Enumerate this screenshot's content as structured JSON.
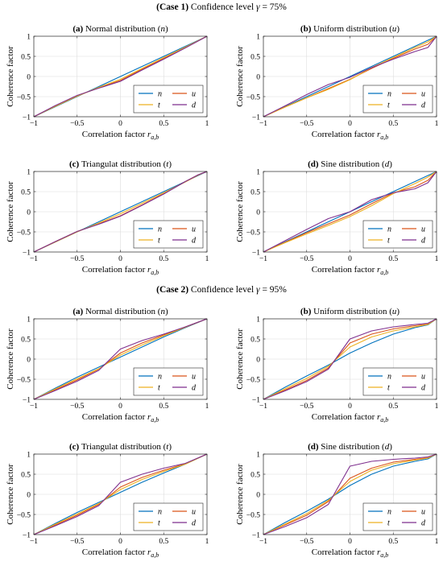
{
  "cases": [
    {
      "label": "(Case 1)",
      "text": "Confidence level ",
      "gamma_sym": "γ",
      "value": " = 75%"
    },
    {
      "label": "(Case 2)",
      "text": "Confidence level ",
      "gamma_sym": "γ",
      "value": " = 95%"
    }
  ],
  "colors": {
    "n": "#0072BD",
    "u": "#D95319",
    "t": "#EDB120",
    "d": "#7E2F8E"
  },
  "chart_data": [
    {
      "type": "line",
      "panel": "(a)",
      "title": "Normal distribution",
      "title_sym": "n",
      "xlabel": "Correlation factor",
      "xlabel_sym": "r",
      "xlabel_sub": "a,b",
      "ylabel": "Coherence factor",
      "xlim": [
        -1,
        1
      ],
      "ylim": [
        -1,
        1
      ],
      "xticks": [
        -1,
        -0.5,
        0,
        0.5,
        1
      ],
      "yticks": [
        -1,
        -0.5,
        0,
        0.5,
        1
      ],
      "grid": true,
      "legend": "bottom-right",
      "x": [
        -1,
        -0.75,
        -0.5,
        -0.25,
        0,
        0.25,
        0.5,
        0.75,
        1
      ],
      "series": [
        {
          "name": "n",
          "values": [
            -1,
            -0.75,
            -0.5,
            -0.25,
            0,
            0.25,
            0.5,
            0.75,
            1
          ]
        },
        {
          "name": "u",
          "values": [
            -1,
            -0.73,
            -0.48,
            -0.28,
            -0.1,
            0.18,
            0.45,
            0.72,
            1
          ]
        },
        {
          "name": "t",
          "values": [
            -1,
            -0.74,
            -0.49,
            -0.27,
            -0.07,
            0.2,
            0.47,
            0.73,
            1
          ]
        },
        {
          "name": "d",
          "values": [
            -1,
            -0.72,
            -0.47,
            -0.29,
            -0.12,
            0.16,
            0.43,
            0.71,
            1
          ]
        }
      ]
    },
    {
      "type": "line",
      "panel": "(b)",
      "title": "Uniform distribution",
      "title_sym": "u",
      "xlabel": "Correlation factor",
      "xlabel_sym": "r",
      "xlabel_sub": "a,b",
      "ylabel": "Coherence factor",
      "xlim": [
        -1,
        1
      ],
      "ylim": [
        -1,
        1
      ],
      "xticks": [
        -1,
        -0.5,
        0,
        0.5,
        1
      ],
      "yticks": [
        -1,
        -0.5,
        0,
        0.5,
        1
      ],
      "grid": true,
      "legend": "bottom-right",
      "x": [
        -1,
        -0.75,
        -0.5,
        -0.25,
        0,
        0.25,
        0.5,
        0.75,
        0.9,
        1
      ],
      "series": [
        {
          "name": "n",
          "values": [
            -1,
            -0.75,
            -0.5,
            -0.25,
            0,
            0.25,
            0.5,
            0.75,
            0.9,
            1
          ]
        },
        {
          "name": "u",
          "values": [
            -1,
            -0.76,
            -0.53,
            -0.3,
            -0.07,
            0.2,
            0.45,
            0.68,
            0.8,
            1
          ]
        },
        {
          "name": "t",
          "values": [
            -1,
            -0.76,
            -0.53,
            -0.32,
            -0.08,
            0.22,
            0.47,
            0.72,
            0.86,
            1
          ]
        },
        {
          "name": "d",
          "values": [
            -1,
            -0.73,
            -0.45,
            -0.2,
            -0.02,
            0.22,
            0.43,
            0.62,
            0.72,
            1
          ]
        }
      ]
    },
    {
      "type": "line",
      "panel": "(c)",
      "title": "Triangulat distribution",
      "title_sym": "t",
      "xlabel": "Correlation factor",
      "xlabel_sym": "r",
      "xlabel_sub": "a,b",
      "ylabel": "Coherence factor",
      "xlim": [
        -1,
        1
      ],
      "ylim": [
        -1,
        1
      ],
      "xticks": [
        -1,
        -0.5,
        0,
        0.5,
        1
      ],
      "yticks": [
        -1,
        -0.5,
        0,
        0.5,
        1
      ],
      "grid": true,
      "legend": "bottom-right",
      "x": [
        -1,
        -0.75,
        -0.5,
        -0.25,
        0,
        0.25,
        0.5,
        0.75,
        0.9,
        1
      ],
      "series": [
        {
          "name": "n",
          "values": [
            -1,
            -0.75,
            -0.5,
            -0.25,
            0,
            0.25,
            0.5,
            0.75,
            0.9,
            1
          ]
        },
        {
          "name": "u",
          "values": [
            -1,
            -0.74,
            -0.49,
            -0.3,
            -0.1,
            0.17,
            0.45,
            0.75,
            0.92,
            1
          ]
        },
        {
          "name": "t",
          "values": [
            -1,
            -0.75,
            -0.5,
            -0.28,
            -0.05,
            0.21,
            0.47,
            0.74,
            0.91,
            1
          ]
        },
        {
          "name": "d",
          "values": [
            -1,
            -0.74,
            -0.49,
            -0.31,
            -0.11,
            0.16,
            0.44,
            0.75,
            0.92,
            1
          ]
        }
      ]
    },
    {
      "type": "line",
      "panel": "(d)",
      "title": "Sine distribution",
      "title_sym": "d",
      "xlabel": "Correlation factor",
      "xlabel_sym": "r",
      "xlabel_sub": "a,b",
      "ylabel": "Coherence factor",
      "xlim": [
        -1,
        1
      ],
      "ylim": [
        -1,
        1
      ],
      "xticks": [
        -1,
        -0.5,
        0,
        0.5,
        1
      ],
      "yticks": [
        -1,
        -0.5,
        0,
        0.5,
        1
      ],
      "grid": true,
      "legend": "bottom-right",
      "x": [
        -1,
        -0.75,
        -0.5,
        -0.25,
        0,
        0.25,
        0.5,
        0.75,
        0.9,
        1
      ],
      "series": [
        {
          "name": "n",
          "values": [
            -1,
            -0.75,
            -0.5,
            -0.25,
            0,
            0.25,
            0.5,
            0.75,
            0.9,
            1
          ]
        },
        {
          "name": "u",
          "values": [
            -1,
            -0.76,
            -0.52,
            -0.3,
            -0.08,
            0.2,
            0.47,
            0.62,
            0.78,
            1
          ]
        },
        {
          "name": "t",
          "values": [
            -1,
            -0.77,
            -0.55,
            -0.34,
            -0.12,
            0.15,
            0.45,
            0.7,
            0.86,
            1
          ]
        },
        {
          "name": "d",
          "values": [
            -1,
            -0.72,
            -0.44,
            -0.17,
            0.0,
            0.3,
            0.47,
            0.57,
            0.72,
            1
          ]
        }
      ]
    },
    {
      "type": "line",
      "panel": "(a)",
      "title": "Normal distribution",
      "title_sym": "n",
      "xlabel": "Correlation factor",
      "xlabel_sym": "r",
      "xlabel_sub": "a,b",
      "ylabel": "Coherence factor",
      "xlim": [
        -1,
        1
      ],
      "ylim": [
        -1,
        1
      ],
      "xticks": [
        -1,
        -0.5,
        0,
        0.5,
        1
      ],
      "yticks": [
        -1,
        -0.5,
        0,
        0.5,
        1
      ],
      "grid": true,
      "legend": "bottom-right",
      "x": [
        -1,
        -0.75,
        -0.5,
        -0.25,
        0,
        0.25,
        0.5,
        0.75,
        1
      ],
      "series": [
        {
          "name": "n",
          "values": [
            -1,
            -0.72,
            -0.45,
            -0.2,
            0.05,
            0.3,
            0.55,
            0.78,
            1
          ]
        },
        {
          "name": "u",
          "values": [
            -1,
            -0.76,
            -0.52,
            -0.25,
            0.15,
            0.4,
            0.6,
            0.8,
            1
          ]
        },
        {
          "name": "t",
          "values": [
            -1,
            -0.74,
            -0.49,
            -0.24,
            0.1,
            0.35,
            0.58,
            0.79,
            1
          ]
        },
        {
          "name": "d",
          "values": [
            -1,
            -0.78,
            -0.55,
            -0.28,
            0.25,
            0.46,
            0.62,
            0.8,
            1
          ]
        }
      ]
    },
    {
      "type": "line",
      "panel": "(b)",
      "title": "Uniform distribution",
      "title_sym": "u",
      "xlabel": "Correlation factor",
      "xlabel_sym": "r",
      "xlabel_sub": "a,b",
      "ylabel": "Coherence factor",
      "xlim": [
        -1,
        1
      ],
      "ylim": [
        -1,
        1
      ],
      "xticks": [
        -1,
        -0.5,
        0,
        0.5,
        1
      ],
      "yticks": [
        -1,
        -0.5,
        0,
        0.5,
        1
      ],
      "grid": true,
      "legend": "bottom-right",
      "x": [
        -1,
        -0.75,
        -0.5,
        -0.25,
        0,
        0.25,
        0.5,
        0.75,
        0.9,
        1
      ],
      "series": [
        {
          "name": "n",
          "values": [
            -1,
            -0.7,
            -0.42,
            -0.15,
            0.15,
            0.4,
            0.62,
            0.78,
            0.85,
            1
          ]
        },
        {
          "name": "u",
          "values": [
            -1,
            -0.77,
            -0.53,
            -0.22,
            0.4,
            0.62,
            0.75,
            0.83,
            0.87,
            1
          ]
        },
        {
          "name": "t",
          "values": [
            -1,
            -0.74,
            -0.48,
            -0.18,
            0.3,
            0.55,
            0.7,
            0.8,
            0.86,
            1
          ]
        },
        {
          "name": "d",
          "values": [
            -1,
            -0.79,
            -0.56,
            -0.25,
            0.5,
            0.7,
            0.8,
            0.86,
            0.89,
            1
          ]
        }
      ]
    },
    {
      "type": "line",
      "panel": "(c)",
      "title": "Triangulat distribution",
      "title_sym": "t",
      "xlabel": "Correlation factor",
      "xlabel_sym": "r",
      "xlabel_sub": "a,b",
      "ylabel": "Coherence factor",
      "xlim": [
        -1,
        1
      ],
      "ylim": [
        -1,
        1
      ],
      "xticks": [
        -1,
        -0.5,
        0,
        0.5,
        1
      ],
      "yticks": [
        -1,
        -0.5,
        0,
        0.5,
        1
      ],
      "grid": true,
      "legend": "bottom-right",
      "x": [
        -1,
        -0.75,
        -0.5,
        -0.25,
        0,
        0.25,
        0.5,
        0.75,
        1
      ],
      "series": [
        {
          "name": "n",
          "values": [
            -1,
            -0.72,
            -0.45,
            -0.2,
            0.05,
            0.3,
            0.53,
            0.75,
            1
          ]
        },
        {
          "name": "u",
          "values": [
            -1,
            -0.76,
            -0.52,
            -0.25,
            0.18,
            0.42,
            0.6,
            0.76,
            1
          ]
        },
        {
          "name": "t",
          "values": [
            -1,
            -0.74,
            -0.49,
            -0.23,
            0.12,
            0.37,
            0.57,
            0.75,
            1
          ]
        },
        {
          "name": "d",
          "values": [
            -1,
            -0.78,
            -0.55,
            -0.28,
            0.3,
            0.5,
            0.65,
            0.77,
            1
          ]
        }
      ]
    },
    {
      "type": "line",
      "panel": "(d)",
      "title": "Sine distribution",
      "title_sym": "d",
      "xlabel": "Correlation factor",
      "xlabel_sym": "r",
      "xlabel_sub": "a,b",
      "ylabel": "Coherence factor",
      "xlim": [
        -1,
        1
      ],
      "ylim": [
        -1,
        1
      ],
      "xticks": [
        -1,
        -0.5,
        0,
        0.5,
        1
      ],
      "yticks": [
        -1,
        -0.5,
        0,
        0.5,
        1
      ],
      "grid": true,
      "legend": "bottom-right",
      "x": [
        -1,
        -0.75,
        -0.5,
        -0.25,
        0,
        0.25,
        0.5,
        0.75,
        0.9,
        1
      ],
      "series": [
        {
          "name": "n",
          "values": [
            -1,
            -0.7,
            -0.42,
            -0.12,
            0.22,
            0.5,
            0.7,
            0.82,
            0.88,
            1
          ]
        },
        {
          "name": "u",
          "values": [
            -1,
            -0.76,
            -0.52,
            -0.18,
            0.4,
            0.65,
            0.8,
            0.87,
            0.91,
            1
          ]
        },
        {
          "name": "t",
          "values": [
            -1,
            -0.74,
            -0.48,
            -0.15,
            0.32,
            0.6,
            0.76,
            0.85,
            0.9,
            1
          ]
        },
        {
          "name": "d",
          "values": [
            -1,
            -0.8,
            -0.58,
            -0.25,
            0.7,
            0.82,
            0.87,
            0.9,
            0.93,
            1
          ]
        }
      ]
    }
  ]
}
